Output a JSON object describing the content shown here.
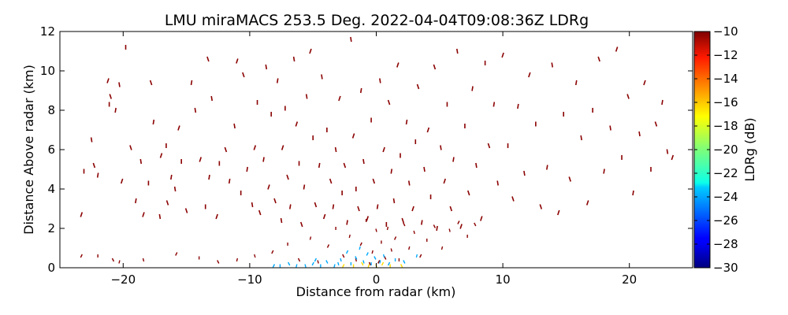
{
  "chart_data": {
    "type": "scatter",
    "title": "LMU miraMACS 253.5 Deg. 2022-04-04T09:08:36Z  LDRg",
    "xlabel": "Distance from radar (km)",
    "ylabel": "Distance Above radar  (km)",
    "xlim": [
      -25,
      25
    ],
    "ylim": [
      0,
      12
    ],
    "x_ticks": [
      "−20",
      "−10",
      "0",
      "10",
      "20"
    ],
    "y_ticks": [
      "0",
      "2",
      "4",
      "6",
      "8",
      "10",
      "12"
    ],
    "grid": false,
    "colorbar": {
      "label": "LDRg (dB)",
      "range": [
        -30,
        -10
      ],
      "ticks": [
        "−10",
        "−12",
        "−14",
        "−16",
        "−18",
        "−20",
        "−22",
        "−24",
        "−26",
        "−28",
        "−30"
      ],
      "colormap": "jet"
    },
    "series": [
      {
        "note_color": "#8b0000",
        "points": [
          [
            -23.3,
            2.7
          ],
          [
            -23.1,
            4.9
          ],
          [
            -22.3,
            5.2
          ],
          [
            -22.0,
            4.7
          ],
          [
            -22.5,
            6.5
          ],
          [
            -21.2,
            9.5
          ],
          [
            -21.1,
            8.3
          ],
          [
            -21.0,
            8.7
          ],
          [
            -20.6,
            8.0
          ],
          [
            -20.3,
            9.3
          ],
          [
            -20.1,
            4.4
          ],
          [
            -19.8,
            11.2
          ],
          [
            -19.4,
            6.1
          ],
          [
            -19.0,
            3.4
          ],
          [
            -18.6,
            5.4
          ],
          [
            -18.4,
            2.7
          ],
          [
            -18.0,
            4.3
          ],
          [
            -17.8,
            9.4
          ],
          [
            -17.6,
            7.4
          ],
          [
            -17.1,
            2.6
          ],
          [
            -17.0,
            5.7
          ],
          [
            -16.6,
            6.2
          ],
          [
            -16.5,
            3.3
          ],
          [
            -16.2,
            4.6
          ],
          [
            -15.9,
            4.0
          ],
          [
            -15.6,
            7.1
          ],
          [
            -15.4,
            5.4
          ],
          [
            -15.0,
            2.9
          ],
          [
            -14.6,
            9.4
          ],
          [
            -14.3,
            8.0
          ],
          [
            -13.9,
            5.5
          ],
          [
            -13.5,
            3.1
          ],
          [
            -13.3,
            10.6
          ],
          [
            -13.2,
            4.6
          ],
          [
            -13.0,
            8.6
          ],
          [
            -12.6,
            2.6
          ],
          [
            -12.4,
            5.3
          ],
          [
            -11.9,
            6.0
          ],
          [
            -11.6,
            4.4
          ],
          [
            -11.2,
            7.2
          ],
          [
            -11.0,
            10.5
          ],
          [
            -10.7,
            3.8
          ],
          [
            -10.5,
            9.8
          ],
          [
            -10.2,
            5.0
          ],
          [
            -9.8,
            3.2
          ],
          [
            -9.6,
            6.1
          ],
          [
            -9.4,
            8.4
          ],
          [
            -9.2,
            2.8
          ],
          [
            -8.9,
            5.5
          ],
          [
            -8.7,
            10.2
          ],
          [
            -8.5,
            4.1
          ],
          [
            -8.3,
            7.8
          ],
          [
            -8.0,
            3.4
          ],
          [
            -7.8,
            9.5
          ],
          [
            -7.5,
            2.4
          ],
          [
            -7.4,
            6.1
          ],
          [
            -7.2,
            8.1
          ],
          [
            -7.0,
            4.6
          ],
          [
            -6.8,
            3.1
          ],
          [
            -6.5,
            10.6
          ],
          [
            -6.3,
            7.3
          ],
          [
            -6.1,
            5.3
          ],
          [
            -5.9,
            2.2
          ],
          [
            -5.7,
            4.1
          ],
          [
            -5.5,
            8.7
          ],
          [
            -5.2,
            11.0
          ],
          [
            -5.0,
            6.6
          ],
          [
            -4.8,
            3.2
          ],
          [
            -4.5,
            5.2
          ],
          [
            -4.3,
            9.7
          ],
          [
            -4.1,
            2.6
          ],
          [
            -3.9,
            7.0
          ],
          [
            -3.6,
            4.4
          ],
          [
            -3.4,
            3.1
          ],
          [
            -3.2,
            6.0
          ],
          [
            -2.9,
            8.6
          ],
          [
            -2.7,
            3.8
          ],
          [
            -2.5,
            5.2
          ],
          [
            -2.3,
            2.3
          ],
          [
            -2.0,
            11.6
          ],
          [
            -1.8,
            6.7
          ],
          [
            -1.6,
            4.0
          ],
          [
            -1.4,
            3.0
          ],
          [
            -1.2,
            9.0
          ],
          [
            -1.0,
            5.4
          ],
          [
            -0.7,
            2.5
          ],
          [
            -0.4,
            7.5
          ],
          [
            -0.2,
            4.4
          ],
          [
            0.1,
            3.1
          ],
          [
            0.3,
            9.5
          ],
          [
            0.6,
            6.0
          ],
          [
            0.8,
            2.2
          ],
          [
            1.0,
            8.4
          ],
          [
            1.2,
            4.9
          ],
          [
            1.4,
            3.4
          ],
          [
            1.7,
            10.3
          ],
          [
            1.9,
            5.7
          ],
          [
            2.1,
            2.4
          ],
          [
            2.4,
            7.4
          ],
          [
            2.6,
            4.3
          ],
          [
            2.9,
            3.0
          ],
          [
            3.1,
            6.4
          ],
          [
            3.3,
            9.2
          ],
          [
            3.6,
            2.3
          ],
          [
            3.8,
            5.0
          ],
          [
            4.1,
            7.0
          ],
          [
            4.3,
            3.6
          ],
          [
            4.6,
            10.2
          ],
          [
            4.8,
            2.0
          ],
          [
            5.1,
            6.1
          ],
          [
            5.4,
            4.4
          ],
          [
            5.6,
            8.3
          ],
          [
            5.9,
            3.0
          ],
          [
            6.1,
            5.5
          ],
          [
            6.4,
            11.0
          ],
          [
            6.7,
            2.1
          ],
          [
            7.0,
            7.2
          ],
          [
            7.3,
            3.8
          ],
          [
            7.6,
            9.1
          ],
          [
            7.9,
            5.2
          ],
          [
            8.3,
            2.5
          ],
          [
            8.6,
            10.4
          ],
          [
            8.9,
            6.2
          ],
          [
            9.3,
            8.3
          ],
          [
            9.6,
            4.3
          ],
          [
            10.0,
            10.8
          ],
          [
            10.4,
            6.2
          ],
          [
            10.8,
            3.5
          ],
          [
            11.2,
            8.2
          ],
          [
            11.7,
            4.8
          ],
          [
            12.1,
            9.8
          ],
          [
            12.6,
            7.3
          ],
          [
            13.0,
            3.1
          ],
          [
            13.5,
            5.1
          ],
          [
            13.9,
            10.3
          ],
          [
            14.4,
            2.8
          ],
          [
            14.8,
            7.8
          ],
          [
            15.3,
            4.5
          ],
          [
            15.8,
            9.4
          ],
          [
            16.2,
            6.6
          ],
          [
            16.7,
            3.3
          ],
          [
            17.1,
            8.0
          ],
          [
            17.6,
            10.6
          ],
          [
            18.0,
            4.9
          ],
          [
            18.5,
            7.1
          ],
          [
            19.0,
            11.1
          ],
          [
            19.4,
            5.6
          ],
          [
            19.9,
            8.7
          ],
          [
            20.3,
            3.8
          ],
          [
            20.8,
            6.8
          ],
          [
            21.2,
            9.4
          ],
          [
            21.7,
            5.0
          ],
          [
            22.1,
            7.3
          ],
          [
            22.6,
            8.4
          ],
          [
            23.0,
            5.9
          ],
          [
            23.4,
            5.6
          ]
        ]
      },
      {
        "note_color": "#8b0000",
        "points": [
          [
            -23.3,
            0.6
          ],
          [
            -22.0,
            0.6
          ],
          [
            -20.8,
            0.4
          ],
          [
            -20.3,
            0.3
          ],
          [
            -18.4,
            0.4
          ],
          [
            -15.8,
            0.7
          ],
          [
            -14.0,
            0.5
          ],
          [
            -12.5,
            0.3
          ],
          [
            -11.0,
            0.4
          ],
          [
            -9.6,
            0.6
          ],
          [
            -8.2,
            0.8
          ],
          [
            -7.0,
            1.2
          ],
          [
            -6.1,
            0.4
          ],
          [
            -5.2,
            1.5
          ],
          [
            -4.6,
            0.3
          ],
          [
            -3.8,
            1.1
          ],
          [
            -3.2,
            2.0
          ],
          [
            -2.6,
            0.6
          ],
          [
            -2.1,
            1.6
          ],
          [
            -1.6,
            0.4
          ],
          [
            -1.2,
            1.2
          ],
          [
            -0.8,
            2.4
          ],
          [
            -0.5,
            0.2
          ],
          [
            -0.3,
            0.8
          ],
          [
            0.0,
            1.9
          ],
          [
            0.2,
            0.3
          ],
          [
            0.4,
            1.3
          ],
          [
            0.7,
            0.5
          ],
          [
            0.9,
            2.0
          ],
          [
            1.2,
            0.9
          ],
          [
            1.5,
            1.5
          ],
          [
            1.8,
            0.4
          ],
          [
            2.2,
            2.2
          ],
          [
            2.6,
            1.0
          ],
          [
            3.0,
            1.8
          ],
          [
            3.5,
            0.6
          ],
          [
            4.0,
            1.4
          ],
          [
            4.6,
            2.1
          ],
          [
            5.2,
            1.0
          ],
          [
            5.8,
            1.9
          ],
          [
            6.5,
            2.3
          ],
          [
            7.2,
            1.6
          ],
          [
            7.8,
            2.2
          ]
        ]
      },
      {
        "note_color": "#00aaff",
        "points": [
          [
            -8.1,
            0.1
          ],
          [
            -7.6,
            0.1
          ],
          [
            -6.9,
            0.2
          ],
          [
            -6.3,
            0.1
          ],
          [
            -5.6,
            0.1
          ],
          [
            -5.0,
            0.2
          ],
          [
            -4.4,
            0.1
          ],
          [
            -3.9,
            0.3
          ],
          [
            -3.3,
            0.1
          ],
          [
            -2.8,
            0.4
          ],
          [
            -2.3,
            0.8
          ],
          [
            -2.0,
            0.2
          ],
          [
            -1.6,
            0.5
          ],
          [
            -1.3,
            1.0
          ],
          [
            -1.0,
            0.3
          ],
          [
            -0.7,
            0.7
          ],
          [
            -0.4,
            0.2
          ],
          [
            -0.1,
            0.5
          ],
          [
            0.3,
            0.3
          ],
          [
            0.6,
            0.6
          ],
          [
            1.0,
            0.2
          ],
          [
            1.5,
            0.4
          ],
          [
            2.2,
            0.3
          ],
          [
            3.2,
            0.6
          ],
          [
            -3.0,
            0.2
          ],
          [
            -4.8,
            0.4
          ]
        ]
      },
      {
        "note_color": "#ffdd00",
        "points": [
          [
            -2.6,
            0.1
          ],
          [
            -1.8,
            0.1
          ],
          [
            -1.1,
            0.2
          ],
          [
            -0.6,
            0.1
          ],
          [
            0.0,
            0.1
          ],
          [
            0.5,
            0.2
          ],
          [
            1.1,
            0.1
          ],
          [
            2.0,
            0.1
          ]
        ]
      }
    ]
  }
}
